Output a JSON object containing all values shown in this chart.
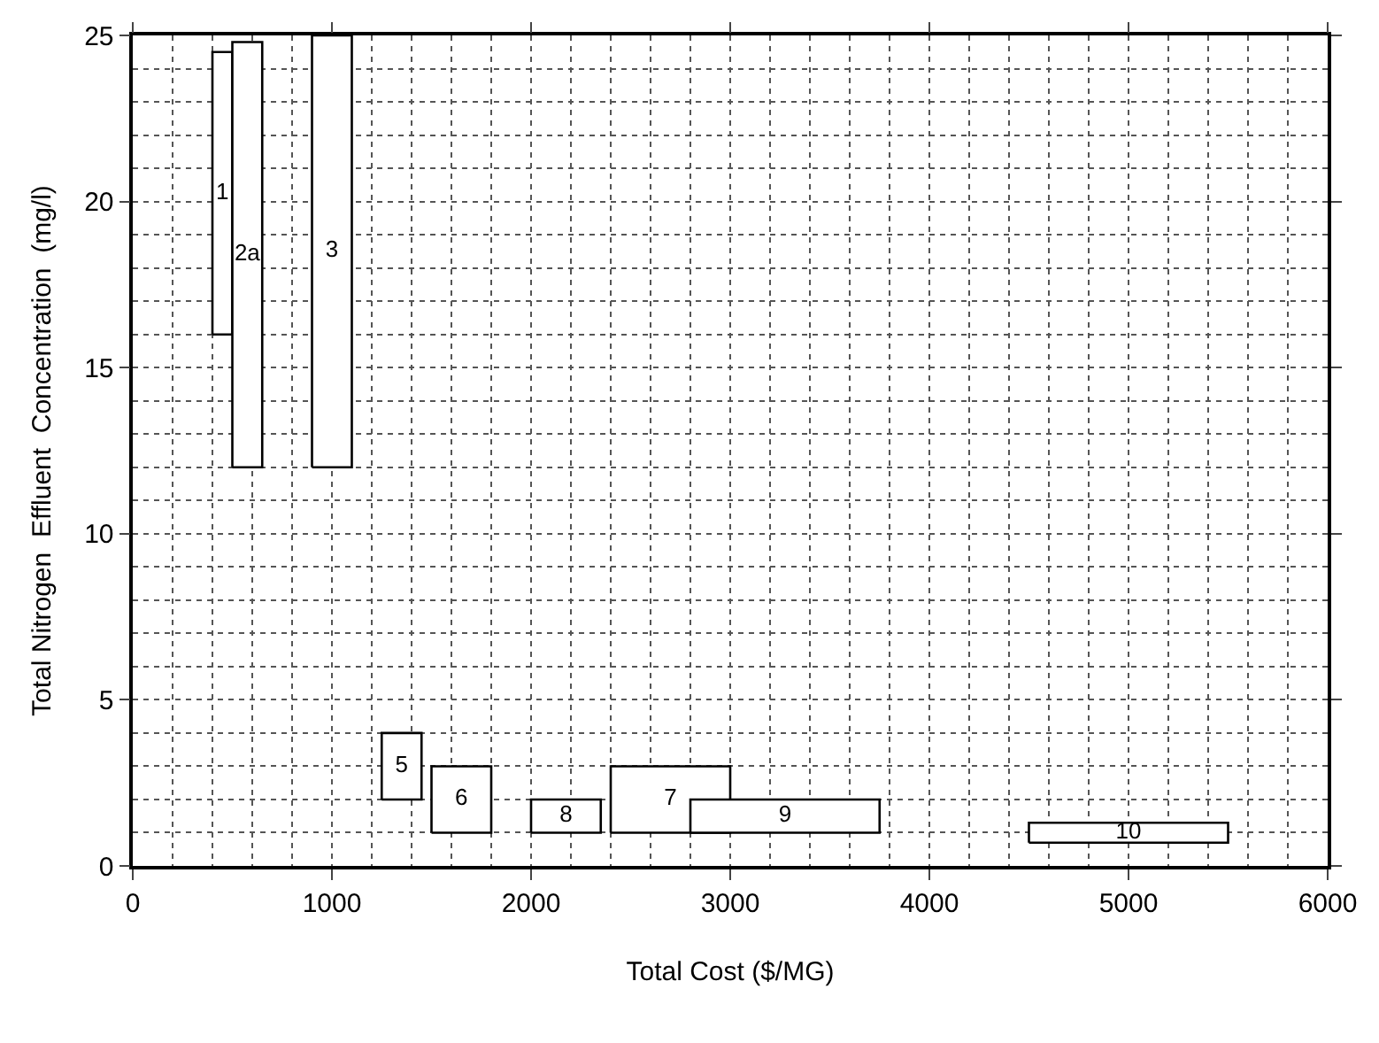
{
  "chart_data": {
    "type": "area",
    "xlabel": "Total Cost ($/MG)",
    "ylabel": "Total Nitrogen  Effluent  Concentration  (mg/l)",
    "xlim": [
      0,
      6000
    ],
    "xticks": [
      0,
      1000,
      2000,
      3000,
      4000,
      5000,
      6000
    ],
    "ylim": [
      0,
      25
    ],
    "yticks": [
      0,
      5,
      10,
      15,
      20,
      25
    ],
    "grid": true,
    "legend": false,
    "marker": "none",
    "line_style": "solid",
    "series": [
      {
        "name": "1",
        "color": "#000000",
        "x": [
          400,
          500,
          500,
          400,
          400
        ],
        "values": [
          16,
          16,
          24.5,
          24.5,
          16
        ]
      },
      {
        "name": "2a",
        "color": "#000000",
        "x": [
          500,
          650,
          650,
          500,
          500
        ],
        "values": [
          12,
          12,
          24.8,
          24.8,
          12
        ]
      },
      {
        "name": "3",
        "color": "#000000",
        "x": [
          900,
          1100,
          1100,
          900,
          900
        ],
        "values": [
          12,
          12,
          25,
          25,
          12
        ]
      },
      {
        "name": "5",
        "color": "#000000",
        "x": [
          1250,
          1450,
          1450,
          1250,
          1250
        ],
        "values": [
          2,
          2,
          4,
          4,
          2
        ]
      },
      {
        "name": "6",
        "color": "#000000",
        "x": [
          1500,
          1800,
          1800,
          1500,
          1500
        ],
        "values": [
          1,
          1,
          3,
          3,
          1
        ]
      },
      {
        "name": "8",
        "color": "#000000",
        "x": [
          2000,
          2350,
          2350,
          2000,
          2000
        ],
        "values": [
          1,
          1,
          2,
          2,
          1
        ]
      },
      {
        "name": "7",
        "color": "#000000",
        "x": [
          2400,
          3000,
          3000,
          2400,
          2400
        ],
        "values": [
          1,
          1,
          3,
          3,
          1
        ]
      },
      {
        "name": "9",
        "color": "#000000",
        "x": [
          2800,
          3750,
          3750,
          2800,
          2800
        ],
        "values": [
          1,
          1,
          2,
          2,
          1
        ]
      },
      {
        "name": "10",
        "color": "#000000",
        "x": [
          4500,
          5500,
          5500,
          4500,
          4500
        ],
        "values": [
          0.7,
          0.7,
          1.3,
          1.3,
          0.7
        ]
      }
    ]
  }
}
